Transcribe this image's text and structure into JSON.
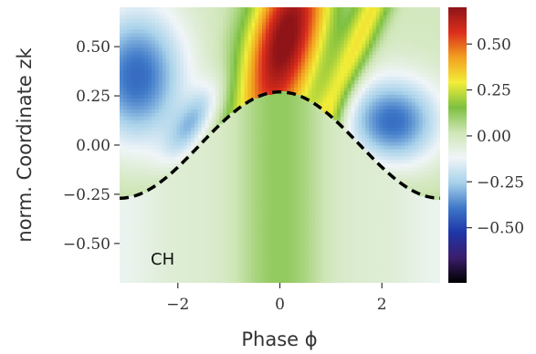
{
  "chart_data": {
    "type": "heatmap",
    "xlabel": "Phase ϕ",
    "ylabel": "norm. Coordinate zk",
    "xlim": [
      -3.1416,
      3.1416
    ],
    "ylim": [
      -0.7,
      0.7
    ],
    "xticks": [
      -2,
      0,
      2
    ],
    "xtick_labels": [
      "−2",
      "0",
      "2"
    ],
    "yticks": [
      0.5,
      0.25,
      0.0,
      -0.25,
      -0.5
    ],
    "ytick_labels": [
      "0.50",
      "0.25",
      "0.00",
      "−0.25",
      "−0.50"
    ],
    "colorbar": {
      "range": [
        -0.8,
        0.7
      ],
      "ticks": [
        0.5,
        0.25,
        0.0,
        -0.25,
        -0.5
      ],
      "tick_labels": [
        "0.50",
        "0.25",
        "0.00",
        "−0.25",
        "−0.50"
      ],
      "colors": [
        "#000000",
        "#3b1d6b",
        "#1e35a8",
        "#3e78c8",
        "#a8d2ea",
        "#f0f5f8",
        "#cfe6b7",
        "#7dc040",
        "#f2ee38",
        "#f2a020",
        "#dc2e1c",
        "#8e1418"
      ]
    },
    "boundary_curve": {
      "description_values": "z = 0.27 * cos(phi)",
      "amplitude": 0.27,
      "style": "dashed",
      "color": "#000000"
    },
    "annotation": "CH",
    "grid": false,
    "legend": "none"
  }
}
